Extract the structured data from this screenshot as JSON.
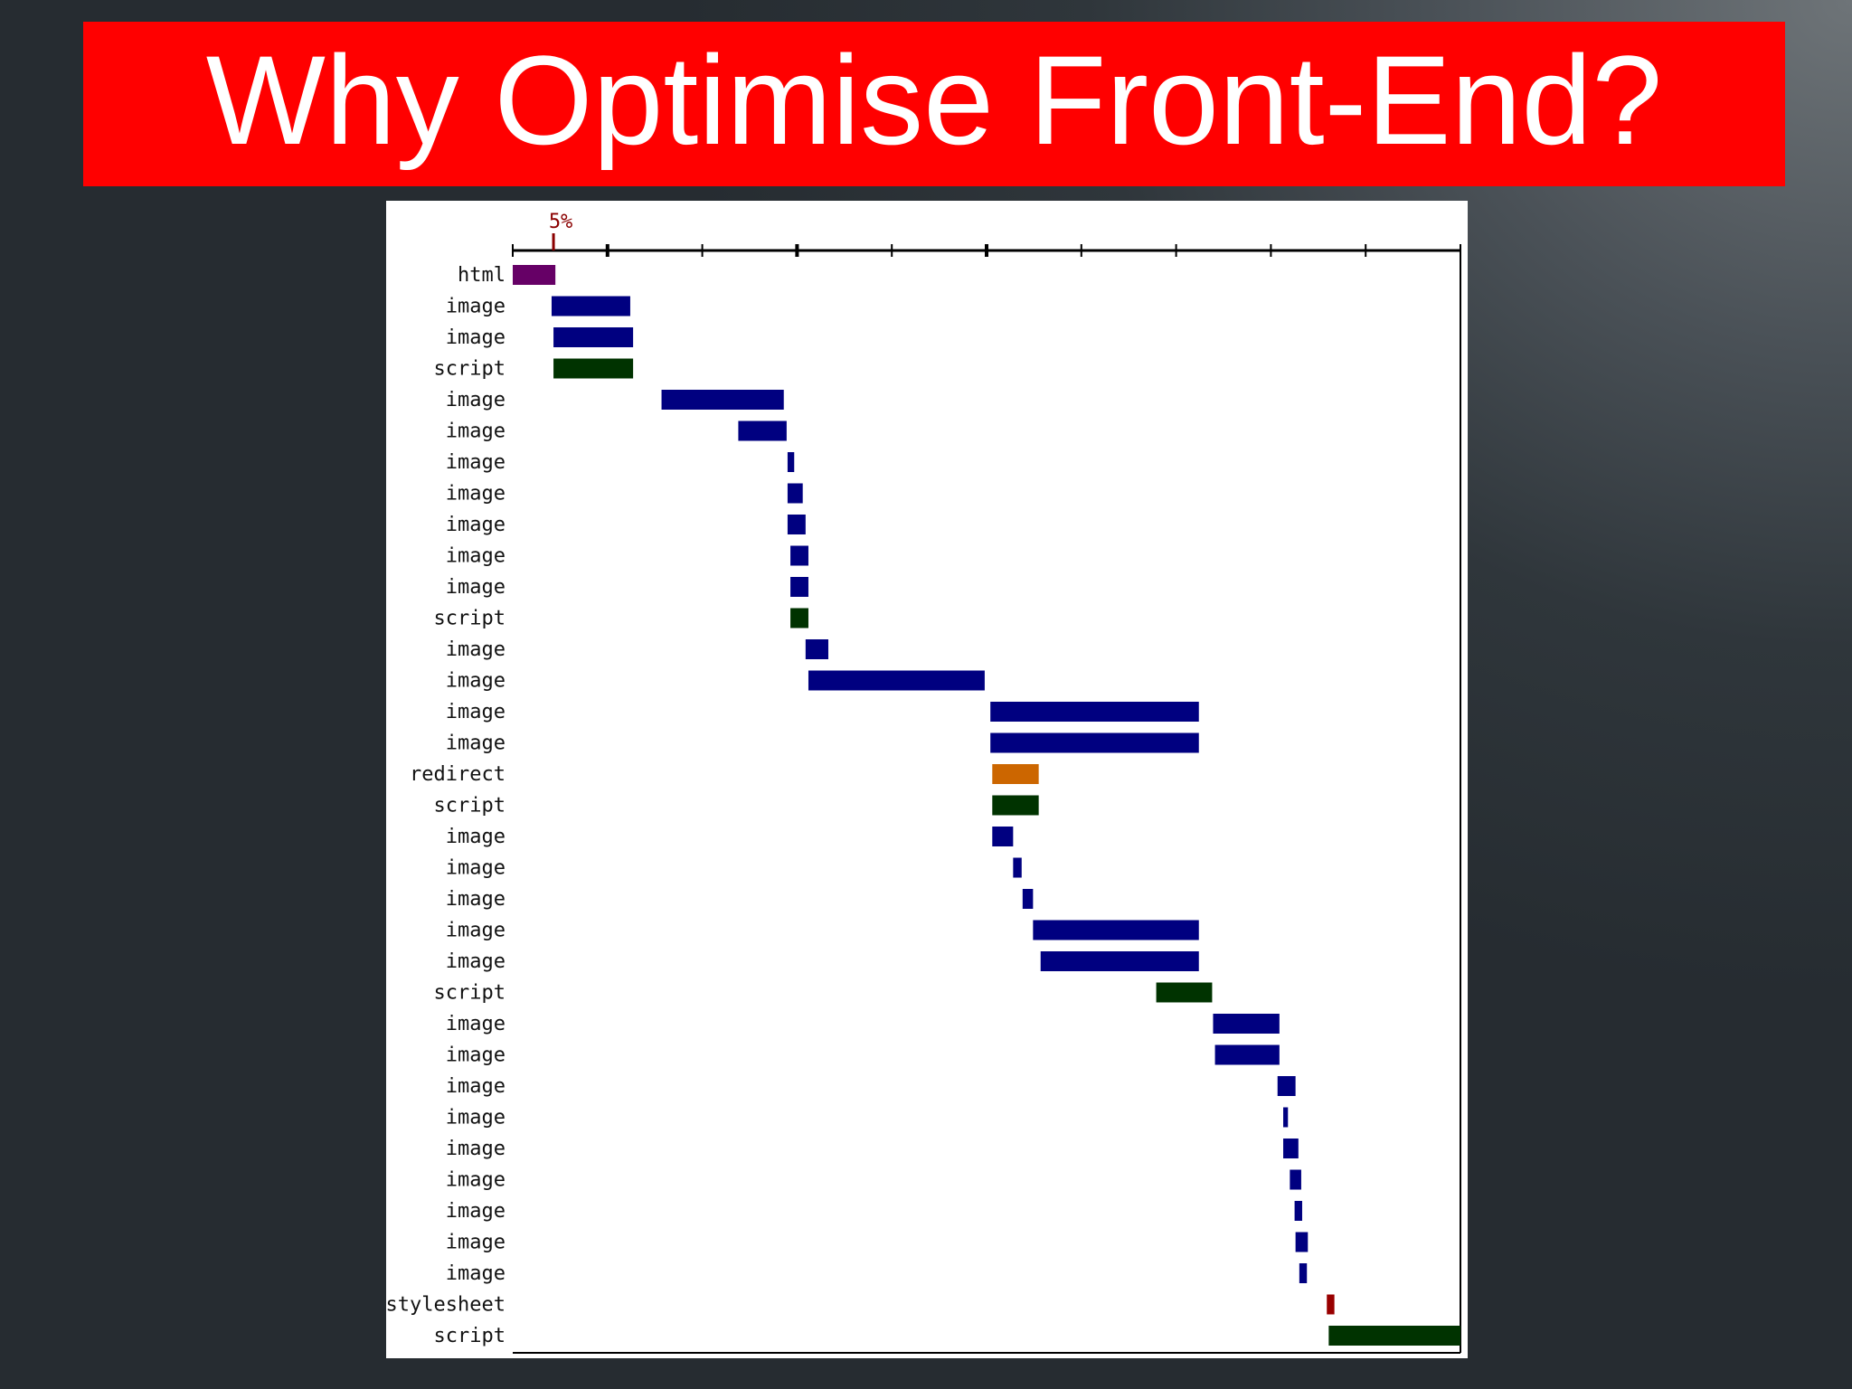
{
  "slide": {
    "title": "Why Optimise Front-End?"
  },
  "chart_data": {
    "type": "waterfall",
    "title": "",
    "xlabel": "",
    "ylabel": "",
    "xlim": [
      0,
      100
    ],
    "major_ticks": [
      0,
      10,
      20,
      30,
      40,
      50,
      60,
      70,
      80,
      90,
      100
    ],
    "marker": {
      "label": "5%",
      "value": 4.3,
      "color": "#8b0000"
    },
    "colors": {
      "html": "#660066",
      "image": "#000080",
      "script": "#003300",
      "redirect": "#cc6600",
      "stylesheet": "#990000"
    },
    "rows": [
      {
        "label": "html",
        "type": "html",
        "start": 0.0,
        "end": 4.5
      },
      {
        "label": "image",
        "type": "image",
        "start": 4.1,
        "end": 12.4
      },
      {
        "label": "image",
        "type": "image",
        "start": 4.3,
        "end": 12.7
      },
      {
        "label": "script",
        "type": "script",
        "start": 4.3,
        "end": 12.7
      },
      {
        "label": "image",
        "type": "image",
        "start": 15.7,
        "end": 28.6
      },
      {
        "label": "image",
        "type": "image",
        "start": 23.8,
        "end": 28.9
      },
      {
        "label": "image",
        "type": "image",
        "start": 29.0,
        "end": 29.7
      },
      {
        "label": "image",
        "type": "image",
        "start": 29.0,
        "end": 30.6
      },
      {
        "label": "image",
        "type": "image",
        "start": 29.0,
        "end": 30.9
      },
      {
        "label": "image",
        "type": "image",
        "start": 29.3,
        "end": 31.2
      },
      {
        "label": "image",
        "type": "image",
        "start": 29.3,
        "end": 31.2
      },
      {
        "label": "script",
        "type": "script",
        "start": 29.3,
        "end": 31.2
      },
      {
        "label": "image",
        "type": "image",
        "start": 30.9,
        "end": 33.3
      },
      {
        "label": "image",
        "type": "image",
        "start": 31.2,
        "end": 49.8
      },
      {
        "label": "image",
        "type": "image",
        "start": 50.4,
        "end": 72.4
      },
      {
        "label": "image",
        "type": "image",
        "start": 50.4,
        "end": 72.4
      },
      {
        "label": "redirect",
        "type": "redirect",
        "start": 50.6,
        "end": 55.5
      },
      {
        "label": "script",
        "type": "script",
        "start": 50.6,
        "end": 55.5
      },
      {
        "label": "image",
        "type": "image",
        "start": 50.6,
        "end": 52.8
      },
      {
        "label": "image",
        "type": "image",
        "start": 52.8,
        "end": 53.7
      },
      {
        "label": "image",
        "type": "image",
        "start": 53.8,
        "end": 54.9
      },
      {
        "label": "image",
        "type": "image",
        "start": 54.9,
        "end": 72.4
      },
      {
        "label": "image",
        "type": "image",
        "start": 55.7,
        "end": 72.4
      },
      {
        "label": "script",
        "type": "script",
        "start": 67.9,
        "end": 73.8
      },
      {
        "label": "image",
        "type": "image",
        "start": 73.9,
        "end": 80.9
      },
      {
        "label": "image",
        "type": "image",
        "start": 74.1,
        "end": 80.9
      },
      {
        "label": "image",
        "type": "image",
        "start": 80.7,
        "end": 82.6
      },
      {
        "label": "image",
        "type": "image",
        "start": 81.3,
        "end": 81.8
      },
      {
        "label": "image",
        "type": "image",
        "start": 81.3,
        "end": 82.9
      },
      {
        "label": "image",
        "type": "image",
        "start": 82.0,
        "end": 83.2
      },
      {
        "label": "image",
        "type": "image",
        "start": 82.5,
        "end": 83.3
      },
      {
        "label": "image",
        "type": "image",
        "start": 82.6,
        "end": 83.9
      },
      {
        "label": "image",
        "type": "image",
        "start": 83.0,
        "end": 83.8
      },
      {
        "label": "stylesheet",
        "type": "stylesheet",
        "start": 85.9,
        "end": 86.7
      },
      {
        "label": "script",
        "type": "script",
        "start": 86.1,
        "end": 100.0
      }
    ]
  }
}
